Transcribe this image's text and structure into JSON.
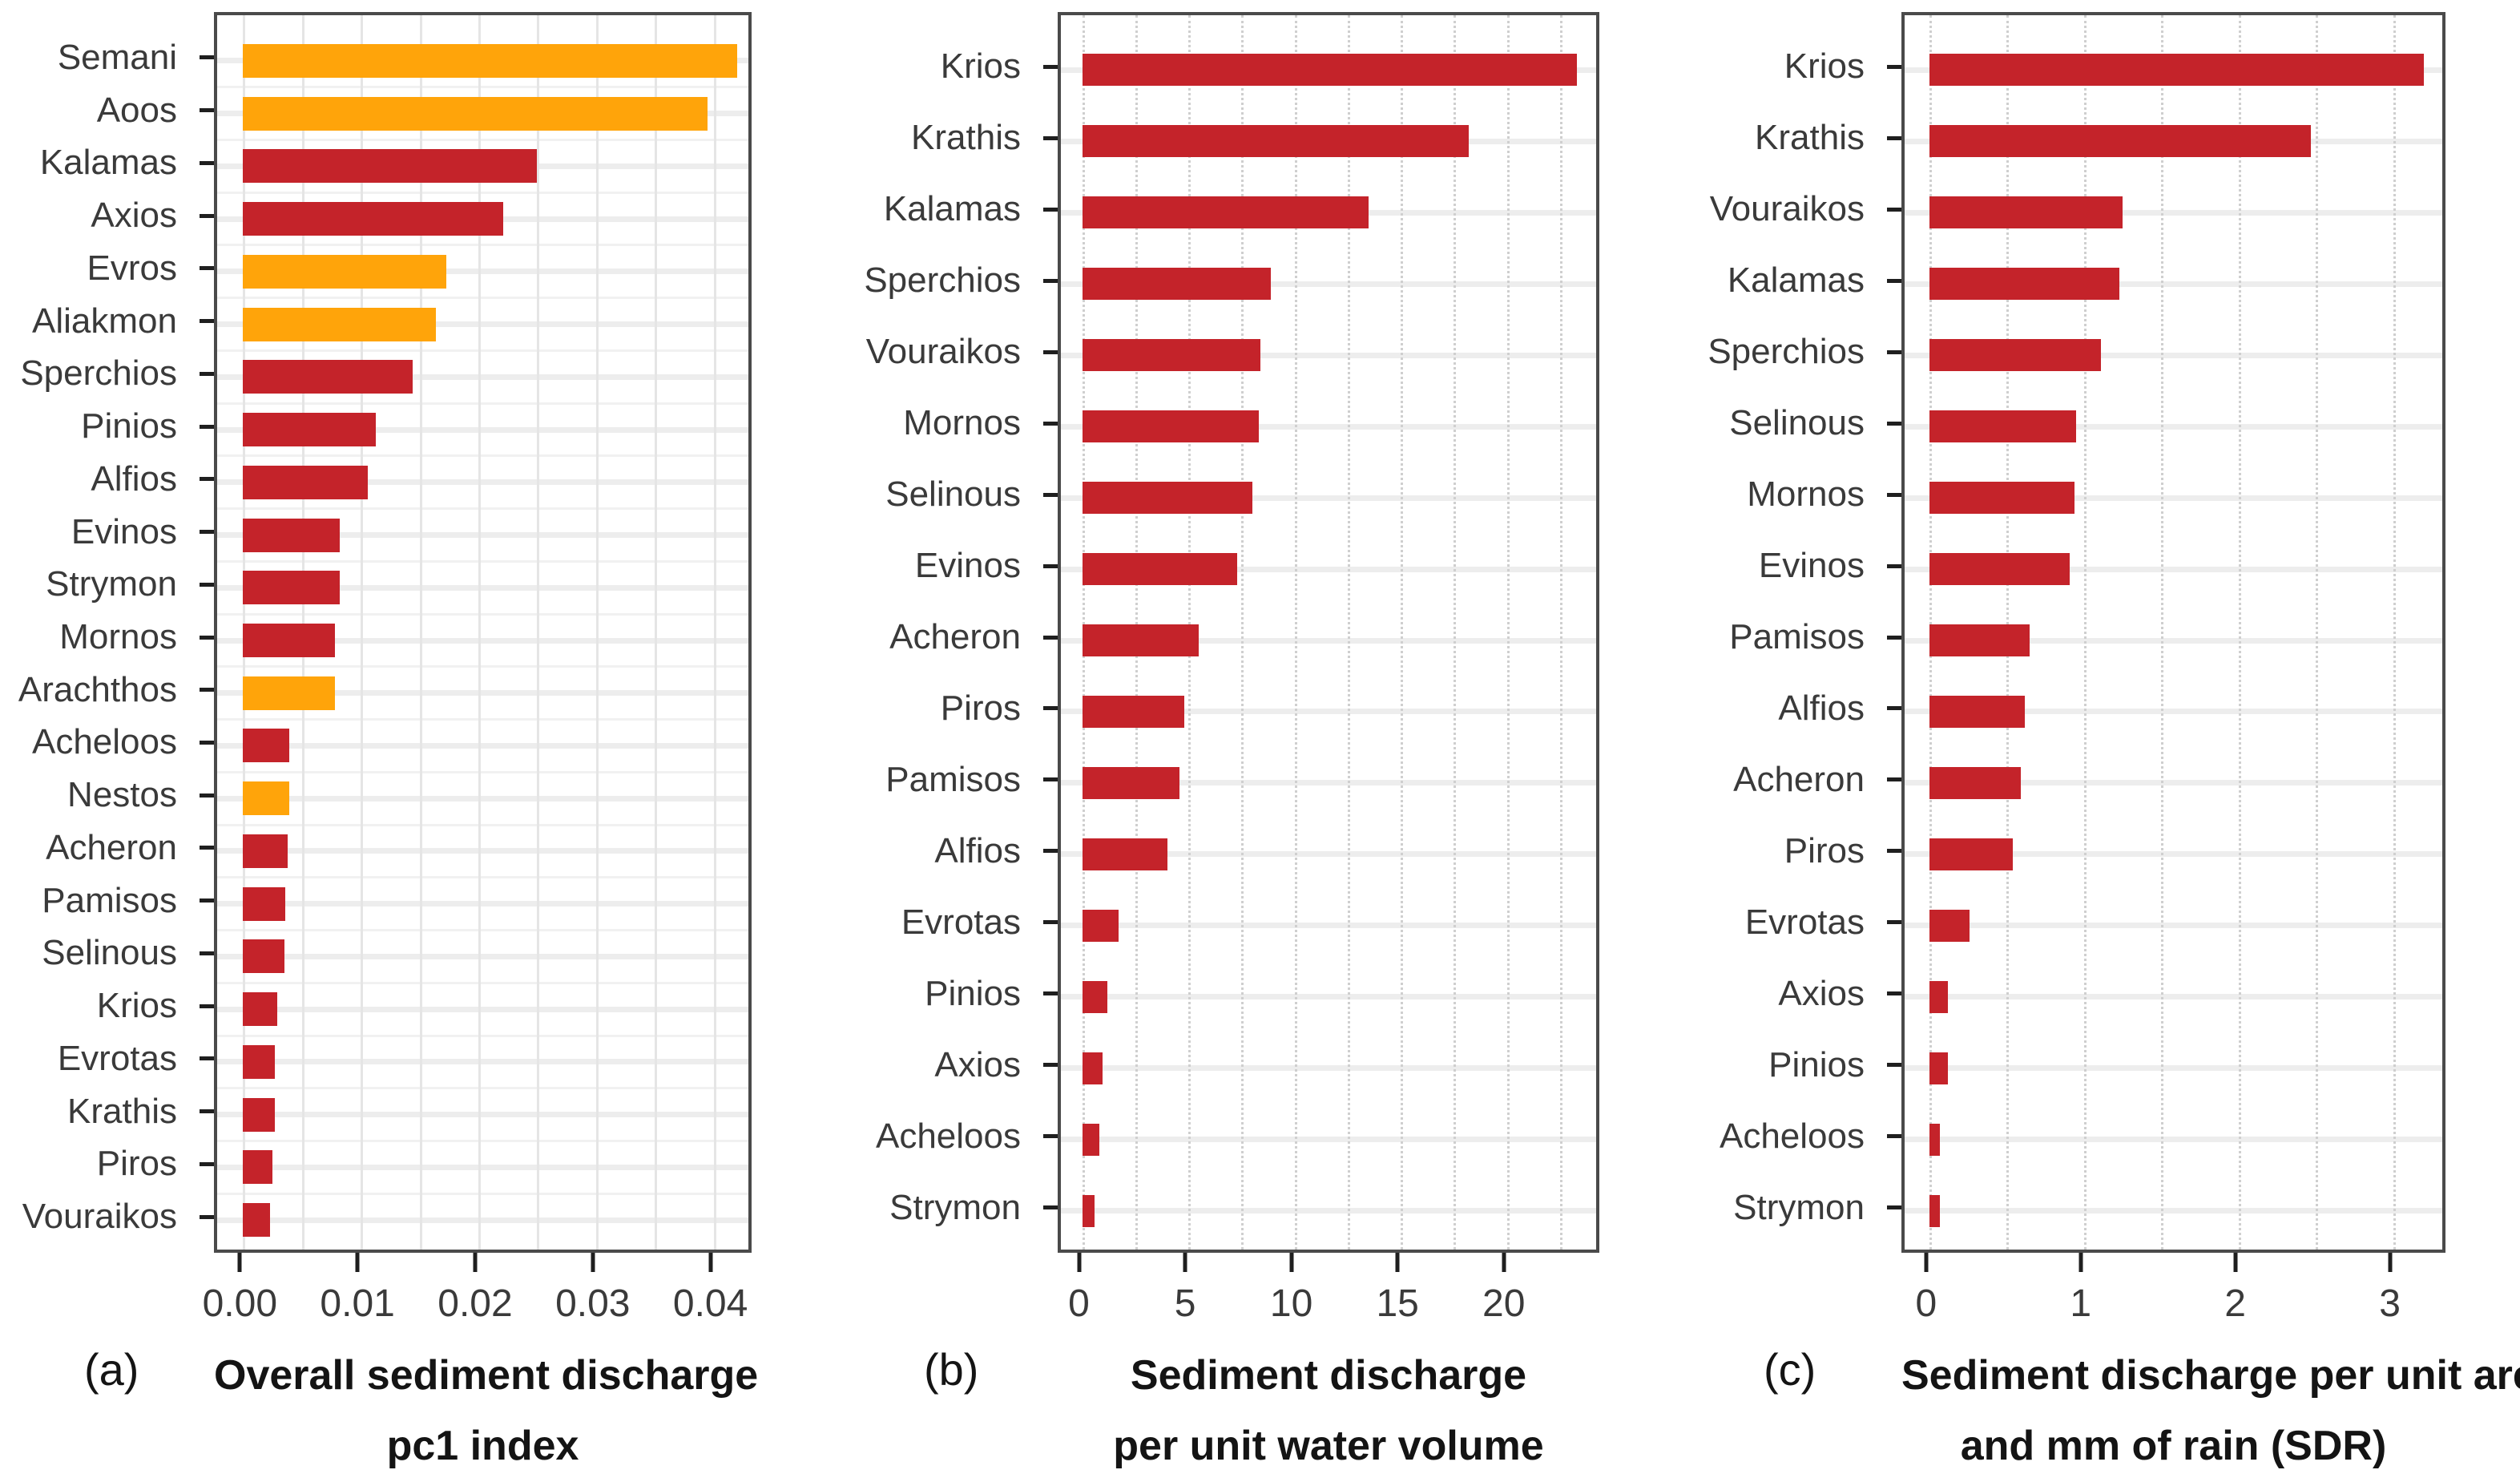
{
  "figure": {
    "background": "#ffffff",
    "accent_red": "#c4232a",
    "accent_orange": "#ffa40a",
    "panel_border_color": "#4a4a4a",
    "gridline_color": "#e5e5e5"
  },
  "chart_data": [
    {
      "type": "bar",
      "orientation": "horizontal",
      "panel_tag": "(a)",
      "caption_lines": [
        "Overall sediment discharge",
        "pc1 index"
      ],
      "categories": [
        "Semani",
        "Aoos",
        "Kalamas",
        "Axios",
        "Evros",
        "Aliakmon",
        "Sperchios",
        "Pinios",
        "Alfios",
        "Evinos",
        "Strymon",
        "Mornos",
        "Arachthos",
        "Acheloos",
        "Nestos",
        "Acheron",
        "Pamisos",
        "Selinous",
        "Krios",
        "Evrotas",
        "Krathis",
        "Piros",
        "Vouraikos"
      ],
      "values": [
        0.042,
        0.0395,
        0.025,
        0.0221,
        0.0173,
        0.0164,
        0.0144,
        0.0113,
        0.0106,
        0.0082,
        0.0082,
        0.0078,
        0.0078,
        0.0039,
        0.0039,
        0.0038,
        0.0036,
        0.0035,
        0.0029,
        0.0027,
        0.0027,
        0.0025,
        0.0023
      ],
      "bar_colors": [
        "#ffa40a",
        "#ffa40a",
        "#c4232a",
        "#c4232a",
        "#ffa40a",
        "#ffa40a",
        "#c4232a",
        "#c4232a",
        "#c4232a",
        "#c4232a",
        "#c4232a",
        "#c4232a",
        "#ffa40a",
        "#c4232a",
        "#ffa40a",
        "#c4232a",
        "#c4232a",
        "#c4232a",
        "#c4232a",
        "#c4232a",
        "#c4232a",
        "#c4232a",
        "#c4232a"
      ],
      "xlim": [
        -0.0022,
        0.0435
      ],
      "xticks": [
        0,
        0.01,
        0.02,
        0.03,
        0.04
      ],
      "xtick_labels": [
        "0.00",
        "0.01",
        "0.02",
        "0.03",
        "0.04"
      ],
      "grid": {
        "step": 0.005,
        "style": "solid",
        "row_boundaries": true
      },
      "legend": "none"
    },
    {
      "type": "bar",
      "orientation": "horizontal",
      "panel_tag": "(b)",
      "caption_lines": [
        "Sediment discharge",
        "per unit water volume"
      ],
      "categories": [
        "Krios",
        "Krathis",
        "Kalamas",
        "Sperchios",
        "Vouraikos",
        "Mornos",
        "Selinous",
        "Evinos",
        "Acheron",
        "Piros",
        "Pamisos",
        "Alfios",
        "Evrotas",
        "Pinios",
        "Axios",
        "Acheloos",
        "Strymon"
      ],
      "values": [
        23.3,
        18.2,
        13.5,
        8.9,
        8.4,
        8.3,
        8.0,
        7.3,
        5.5,
        4.8,
        4.6,
        4.0,
        1.7,
        1.2,
        0.95,
        0.8,
        0.6
      ],
      "bar_colors": [
        "#c4232a",
        "#c4232a",
        "#c4232a",
        "#c4232a",
        "#c4232a",
        "#c4232a",
        "#c4232a",
        "#c4232a",
        "#c4232a",
        "#c4232a",
        "#c4232a",
        "#c4232a",
        "#c4232a",
        "#c4232a",
        "#c4232a",
        "#c4232a",
        "#c4232a"
      ],
      "xlim": [
        -1.0,
        24.5
      ],
      "xticks": [
        0,
        5,
        10,
        15,
        20
      ],
      "xtick_labels": [
        "0",
        "5",
        "10",
        "15",
        "20"
      ],
      "grid": {
        "step": 2.5,
        "style": "dashed",
        "row_boundaries": false
      },
      "legend": "none"
    },
    {
      "type": "bar",
      "orientation": "horizontal",
      "panel_tag": "(c)",
      "caption_lines": [
        "Sediment discharge per unit area",
        "and mm of rain (SDR)"
      ],
      "categories": [
        "Krios",
        "Krathis",
        "Vouraikos",
        "Kalamas",
        "Sperchios",
        "Selinous",
        "Mornos",
        "Evinos",
        "Pamisos",
        "Alfios",
        "Acheron",
        "Piros",
        "Evrotas",
        "Axios",
        "Pinios",
        "Acheloos",
        "Strymon"
      ],
      "values": [
        3.2,
        2.47,
        1.25,
        1.23,
        1.11,
        0.95,
        0.94,
        0.91,
        0.65,
        0.62,
        0.59,
        0.54,
        0.26,
        0.12,
        0.12,
        0.07,
        0.07
      ],
      "bar_colors": [
        "#c4232a",
        "#c4232a",
        "#c4232a",
        "#c4232a",
        "#c4232a",
        "#c4232a",
        "#c4232a",
        "#c4232a",
        "#c4232a",
        "#c4232a",
        "#c4232a",
        "#c4232a",
        "#c4232a",
        "#c4232a",
        "#c4232a",
        "#c4232a",
        "#c4232a"
      ],
      "xlim": [
        -0.16,
        3.36
      ],
      "xticks": [
        0,
        1,
        2,
        3
      ],
      "xtick_labels": [
        "0",
        "1",
        "2",
        "3"
      ],
      "grid": {
        "step": 0.5,
        "style": "dashed",
        "row_boundaries": false
      },
      "legend": "none"
    }
  ]
}
